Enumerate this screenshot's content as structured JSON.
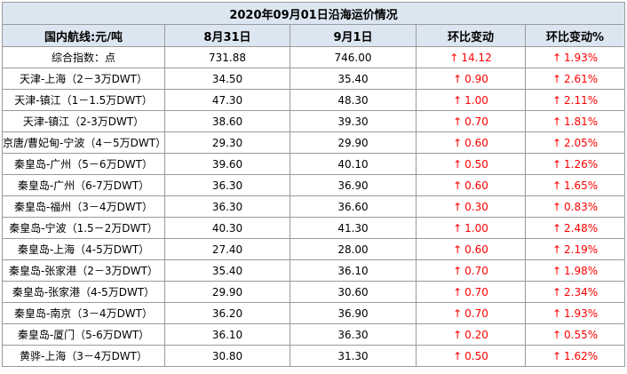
{
  "title": "2020年09月01日沿海运价情况",
  "headers": [
    "国内航线:元/吨",
    "8月31日",
    "9月1日",
    "环比变动",
    "环比变动%"
  ],
  "colors": {
    "header_bg": "#dce6f1",
    "up": "#ff0000",
    "border": "#9a9a9a"
  },
  "arrow_icon": "↑",
  "rows": [
    {
      "route": "综合指数：点",
      "aug31": "731.88",
      "sep1": "746.00",
      "change": "14.12",
      "change_pct": "1.93%"
    },
    {
      "route": "天津-上海（2－3万DWT）",
      "aug31": "34.50",
      "sep1": "35.40",
      "change": "0.90",
      "change_pct": "2.61%"
    },
    {
      "route": "天津-镇江（1－1.5万DWT）",
      "aug31": "47.30",
      "sep1": "48.30",
      "change": "1.00",
      "change_pct": "2.11%"
    },
    {
      "route": "天津-镇江（2-3万DWT）",
      "aug31": "38.60",
      "sep1": "39.30",
      "change": "0.70",
      "change_pct": "1.81%"
    },
    {
      "route": "京唐/曹妃甸-宁波（4－5万DWT）",
      "aug31": "29.30",
      "sep1": "29.90",
      "change": "0.60",
      "change_pct": "2.05%"
    },
    {
      "route": "秦皇岛-广州（5－6万DWT）",
      "aug31": "39.60",
      "sep1": "40.10",
      "change": "0.50",
      "change_pct": "1.26%"
    },
    {
      "route": "秦皇岛-广州（6-7万DWT）",
      "aug31": "36.30",
      "sep1": "36.90",
      "change": "0.60",
      "change_pct": "1.65%"
    },
    {
      "route": "秦皇岛-福州（3－4万DWT）",
      "aug31": "36.30",
      "sep1": "36.60",
      "change": "0.30",
      "change_pct": "0.83%"
    },
    {
      "route": "秦皇岛-宁波（1.5－2万DWT）",
      "aug31": "40.30",
      "sep1": "41.30",
      "change": "1.00",
      "change_pct": "2.48%"
    },
    {
      "route": "秦皇岛-上海（4-5万DWT）",
      "aug31": "27.40",
      "sep1": "28.00",
      "change": "0.60",
      "change_pct": "2.19%"
    },
    {
      "route": "秦皇岛-张家港（2－3万DWT）",
      "aug31": "35.40",
      "sep1": "36.10",
      "change": "0.70",
      "change_pct": "1.98%"
    },
    {
      "route": "秦皇岛-张家港（4-5万DWT）",
      "aug31": "29.90",
      "sep1": "30.60",
      "change": "0.70",
      "change_pct": "2.34%"
    },
    {
      "route": "秦皇岛-南京（3－4万DWT）",
      "aug31": "36.20",
      "sep1": "36.90",
      "change": "0.70",
      "change_pct": "1.93%"
    },
    {
      "route": "秦皇岛-厦门（5-6万DWT）",
      "aug31": "36.10",
      "sep1": "36.30",
      "change": "0.20",
      "change_pct": "0.55%"
    },
    {
      "route": "黄骅-上海（3－4万DWT）",
      "aug31": "30.80",
      "sep1": "31.30",
      "change": "0.50",
      "change_pct": "1.62%"
    }
  ]
}
